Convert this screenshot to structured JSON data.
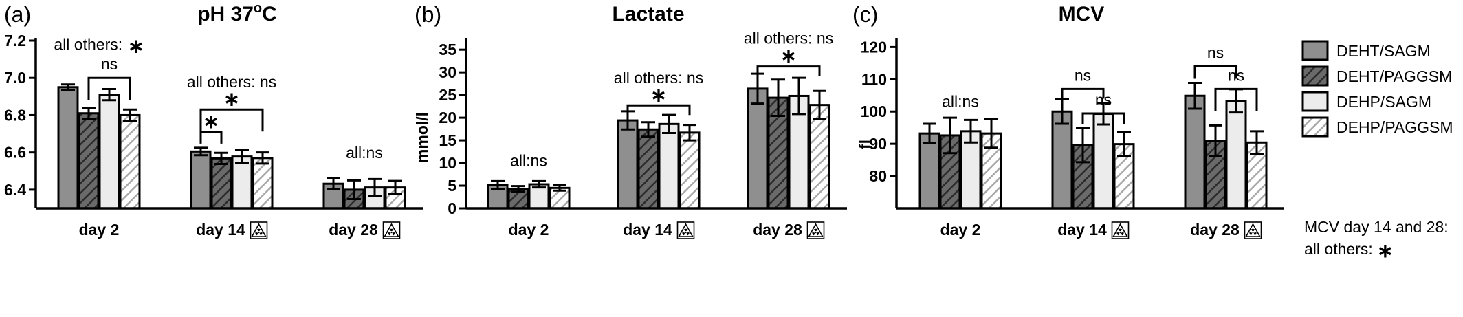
{
  "chart_data": [
    {
      "panel": "(a)",
      "type": "bar",
      "title": "pH 37",
      "title_sup": "o",
      "title_suffix": "C",
      "ylabel": "",
      "ylim": [
        6.3,
        7.2
      ],
      "yticks": [
        {
          "v": 6.4,
          "label": "6.4"
        },
        {
          "v": 6.6,
          "label": "6.6"
        },
        {
          "v": 6.8,
          "label": "6.8"
        },
        {
          "v": 7.0,
          "label": "7.0"
        },
        {
          "v": 7.2,
          "label": "7.2"
        }
      ],
      "categories": [
        {
          "label": "day 2",
          "radiation": false
        },
        {
          "label": "day 14",
          "radiation": true
        },
        {
          "label": "day 28",
          "radiation": true
        }
      ],
      "series": [
        {
          "values": [
            6.95,
            6.605,
            6.432
          ]
        },
        {
          "values": [
            6.81,
            6.568,
            6.4
          ]
        },
        {
          "values": [
            6.91,
            6.578,
            6.412
          ]
        },
        {
          "values": [
            6.8,
            6.57,
            6.412
          ]
        }
      ],
      "errors": [
        [
          0.015,
          0.02,
          0.03
        ],
        [
          0.03,
          0.03,
          0.05
        ],
        [
          0.03,
          0.035,
          0.045
        ],
        [
          0.03,
          0.03,
          0.035
        ]
      ],
      "brackets": [
        {
          "cat": 0,
          "from": 1,
          "to": 3,
          "y": 7.0,
          "label": "ns",
          "star": false
        },
        {
          "cat": 1,
          "from": 0,
          "to": 1,
          "y": 6.71,
          "label": "*",
          "star": true
        },
        {
          "cat": 1,
          "from": 0,
          "to": 3,
          "y": 6.83,
          "label": "*",
          "star": true
        }
      ],
      "annotations": [
        {
          "text": "all others:",
          "cat": 0,
          "star": true,
          "y": 7.15
        },
        {
          "text": "all others: ns",
          "cat": 1,
          "star": false,
          "y": 6.95
        },
        {
          "text": "all:ns",
          "cat": 2,
          "star": false,
          "y": 6.57
        }
      ]
    },
    {
      "panel": "(b)",
      "type": "bar",
      "title": "Lactate",
      "ylabel": "mmol/l",
      "ylim": [
        0,
        37
      ],
      "yticks": [
        {
          "v": 0,
          "label": "0"
        },
        {
          "v": 5,
          "label": "5"
        },
        {
          "v": 10,
          "label": "10"
        },
        {
          "v": 15,
          "label": "15"
        },
        {
          "v": 20,
          "label": "20"
        },
        {
          "v": 25,
          "label": "25"
        },
        {
          "v": 30,
          "label": "30"
        },
        {
          "v": 35,
          "label": "35"
        }
      ],
      "categories": [
        {
          "label": "day 2",
          "radiation": false
        },
        {
          "label": "day 14",
          "radiation": true
        },
        {
          "label": "day 28",
          "radiation": true
        }
      ],
      "series": [
        {
          "values": [
            5.1,
            19.4,
            26.4
          ]
        },
        {
          "values": [
            4.3,
            17.4,
            24.4
          ]
        },
        {
          "values": [
            5.3,
            18.6,
            24.8
          ]
        },
        {
          "values": [
            4.5,
            16.7,
            22.8
          ]
        }
      ],
      "errors": [
        [
          0.9,
          2.0,
          3.3
        ],
        [
          0.6,
          1.6,
          4.0
        ],
        [
          0.7,
          2.0,
          4.0
        ],
        [
          0.6,
          1.7,
          3.1
        ]
      ],
      "brackets": [
        {
          "cat": 1,
          "from": 0,
          "to": 3,
          "y": 22.7,
          "label": "*",
          "star": true
        },
        {
          "cat": 2,
          "from": 0,
          "to": 3,
          "y": 31.3,
          "label": "*",
          "star": true
        }
      ],
      "annotations": [
        {
          "text": "all:ns",
          "cat": 0,
          "star": false,
          "y": 9.3
        },
        {
          "text": "all others: ns",
          "cat": 1,
          "star": false,
          "y": 27.6
        },
        {
          "text": "all others: ns",
          "cat": 2,
          "star": false,
          "y": 36.3
        }
      ]
    },
    {
      "panel": "(c)",
      "type": "bar",
      "title": "MCV",
      "ylabel": "fl",
      "ylim": [
        70,
        122
      ],
      "yticks": [
        {
          "v": 80,
          "label": "80"
        },
        {
          "v": 90,
          "label": "90"
        },
        {
          "v": 100,
          "label": "100"
        },
        {
          "v": 110,
          "label": "110"
        },
        {
          "v": 120,
          "label": "120"
        }
      ],
      "categories": [
        {
          "label": "day 2",
          "radiation": false
        },
        {
          "label": "day 14",
          "radiation": true
        },
        {
          "label": "day 28",
          "radiation": true
        }
      ],
      "series": [
        {
          "values": [
            93.2,
            100.0,
            104.9
          ]
        },
        {
          "values": [
            92.6,
            89.6,
            90.9
          ]
        },
        {
          "values": [
            93.9,
            99.3,
            103.3
          ]
        },
        {
          "values": [
            93.2,
            89.9,
            90.4
          ]
        }
      ],
      "errors": [
        [
          3.0,
          3.8,
          4.0
        ],
        [
          5.5,
          5.3,
          4.8
        ],
        [
          3.5,
          3.3,
          3.6
        ],
        [
          4.4,
          3.8,
          3.5
        ]
      ],
      "brackets": [
        {
          "cat": 1,
          "from": 0,
          "to": 2,
          "y": 107.0,
          "label": "ns",
          "star": false
        },
        {
          "cat": 1,
          "from": 1,
          "to": 3,
          "y": 99.4,
          "label": "ns",
          "star": false
        },
        {
          "cat": 2,
          "from": 0,
          "to": 2,
          "y": 114.0,
          "label": "ns",
          "star": false
        },
        {
          "cat": 2,
          "from": 1,
          "to": 3,
          "y": 107.0,
          "label": "ns",
          "star": false
        }
      ],
      "annotations": [
        {
          "text": "all:ns",
          "cat": 0,
          "star": false,
          "y": 101.4
        }
      ]
    }
  ],
  "legend": {
    "position": "right",
    "items": [
      "DEHT/SAGM",
      "DEHT/PAGGSM",
      "DEHP/SAGM",
      "DEHP/PAGGSM"
    ]
  },
  "note": {
    "line1": "MCV day 14 and 28:",
    "line2": "all others:"
  },
  "series_styles": [
    {
      "fill": "#8f8f8f",
      "pattern": "none"
    },
    {
      "fill": "#6a6a6a",
      "pattern": "hatch-dark"
    },
    {
      "fill": "#ececec",
      "pattern": "none"
    },
    {
      "fill": "#ffffff",
      "pattern": "hatch-light"
    }
  ],
  "colors": {
    "stroke": "#000000",
    "hatch_dark": "#2b2b2b",
    "hatch_light": "#9a9a9a"
  },
  "icons": {
    "radiation": "radiation-icon",
    "star": "asterisk-icon"
  }
}
